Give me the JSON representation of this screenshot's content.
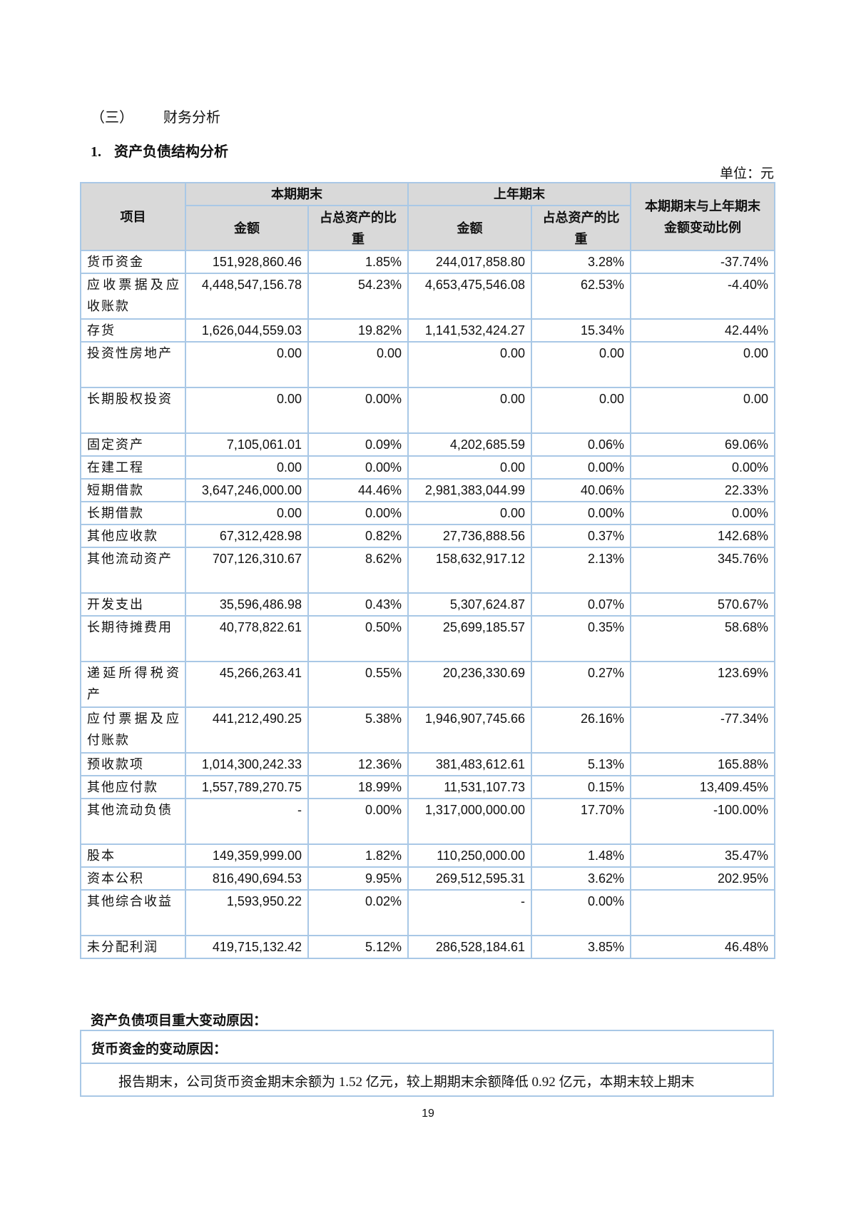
{
  "section": {
    "number": "（三）",
    "title": "财务分析"
  },
  "subsection": {
    "number": "1.",
    "title": "资产负债结构分析"
  },
  "unit": "单位：元",
  "table": {
    "headers": {
      "item": "项目",
      "current": "本期期末",
      "previous": "上年期末",
      "amount": "金额",
      "ratio": "占总资产的比重",
      "change": "本期期末与上年期末金额变动比例"
    },
    "rows": [
      {
        "name": "货币资金",
        "cur_amt": "151,928,860.46",
        "cur_pct": "1.85%",
        "prev_amt": "244,017,858.80",
        "prev_pct": "3.28%",
        "change": "-37.74%"
      },
      {
        "name": "应收票据及应收账款",
        "cur_amt": "4,448,547,156.78",
        "cur_pct": "54.23%",
        "prev_amt": "4,653,475,546.08",
        "prev_pct": "62.53%",
        "change": "-4.40%"
      },
      {
        "name": "存货",
        "cur_amt": "1,626,044,559.03",
        "cur_pct": "19.82%",
        "prev_amt": "1,141,532,424.27",
        "prev_pct": "15.34%",
        "change": "42.44%"
      },
      {
        "name": "投资性房地产",
        "cur_amt": "0.00",
        "cur_pct": "0.00",
        "prev_amt": "0.00",
        "prev_pct": "0.00",
        "change": "0.00"
      },
      {
        "name": "长期股权投资",
        "cur_amt": "0.00",
        "cur_pct": "0.00%",
        "prev_amt": "0.00",
        "prev_pct": "0.00",
        "change": "0.00"
      },
      {
        "name": "固定资产",
        "cur_amt": "7,105,061.01",
        "cur_pct": "0.09%",
        "prev_amt": "4,202,685.59",
        "prev_pct": "0.06%",
        "change": "69.06%"
      },
      {
        "name": "在建工程",
        "cur_amt": "0.00",
        "cur_pct": "0.00%",
        "prev_amt": "0.00",
        "prev_pct": "0.00%",
        "change": "0.00%"
      },
      {
        "name": "短期借款",
        "cur_amt": "3,647,246,000.00",
        "cur_pct": "44.46%",
        "prev_amt": "2,981,383,044.99",
        "prev_pct": "40.06%",
        "change": "22.33%"
      },
      {
        "name": "长期借款",
        "cur_amt": "0.00",
        "cur_pct": "0.00%",
        "prev_amt": "0.00",
        "prev_pct": "0.00%",
        "change": "0.00%"
      },
      {
        "name": "其他应收款",
        "cur_amt": "67,312,428.98",
        "cur_pct": "0.82%",
        "prev_amt": "27,736,888.56",
        "prev_pct": "0.37%",
        "change": "142.68%"
      },
      {
        "name": "其他流动资产",
        "cur_amt": "707,126,310.67",
        "cur_pct": "8.62%",
        "prev_amt": "158,632,917.12",
        "prev_pct": "2.13%",
        "change": "345.76%"
      },
      {
        "name": "开发支出",
        "cur_amt": "35,596,486.98",
        "cur_pct": "0.43%",
        "prev_amt": "5,307,624.87",
        "prev_pct": "0.07%",
        "change": "570.67%"
      },
      {
        "name": "长期待摊费用",
        "cur_amt": "40,778,822.61",
        "cur_pct": "0.50%",
        "prev_amt": "25,699,185.57",
        "prev_pct": "0.35%",
        "change": "58.68%"
      },
      {
        "name": "递延所得税资产",
        "cur_amt": "45,266,263.41",
        "cur_pct": "0.55%",
        "prev_amt": "20,236,330.69",
        "prev_pct": "0.27%",
        "change": "123.69%"
      },
      {
        "name": "应付票据及应付账款",
        "cur_amt": "441,212,490.25",
        "cur_pct": "5.38%",
        "prev_amt": "1,946,907,745.66",
        "prev_pct": "26.16%",
        "change": "-77.34%"
      },
      {
        "name": "预收款项",
        "cur_amt": "1,014,300,242.33",
        "cur_pct": "12.36%",
        "prev_amt": "381,483,612.61",
        "prev_pct": "5.13%",
        "change": "165.88%"
      },
      {
        "name": "其他应付款",
        "cur_amt": "1,557,789,270.75",
        "cur_pct": "18.99%",
        "prev_amt": "11,531,107.73",
        "prev_pct": "0.15%",
        "change": "13,409.45%"
      },
      {
        "name": "其他流动负债",
        "cur_amt": "-",
        "cur_pct": "0.00%",
        "prev_amt": "1,317,000,000.00",
        "prev_pct": "17.70%",
        "change": "-100.00%"
      },
      {
        "name": "股本",
        "cur_amt": "149,359,999.00",
        "cur_pct": "1.82%",
        "prev_amt": "110,250,000.00",
        "prev_pct": "1.48%",
        "change": "35.47%"
      },
      {
        "name": "资本公积",
        "cur_amt": "816,490,694.53",
        "cur_pct": "9.95%",
        "prev_amt": "269,512,595.31",
        "prev_pct": "3.62%",
        "change": "202.95%"
      },
      {
        "name": "其他综合收益",
        "cur_amt": "1,593,950.22",
        "cur_pct": "0.02%",
        "prev_amt": "-",
        "prev_pct": "0.00%",
        "change": ""
      },
      {
        "name": "未分配利润",
        "cur_amt": "419,715,132.42",
        "cur_pct": "5.12%",
        "prev_amt": "286,528,184.61",
        "prev_pct": "3.85%",
        "change": "46.48%"
      }
    ]
  },
  "reasons": {
    "title": "资产负债项目重大变动原因：",
    "items": [
      {
        "heading": "货币资金的变动原因：",
        "text": "报告期末，公司货币资金期末余额为 1.52 亿元，较上期期末余额降低 0.92 亿元，本期末较上期末"
      }
    ]
  },
  "page_number": "19",
  "colors": {
    "border": "#a9c8e6",
    "header_bg": "#d9d9d9"
  }
}
